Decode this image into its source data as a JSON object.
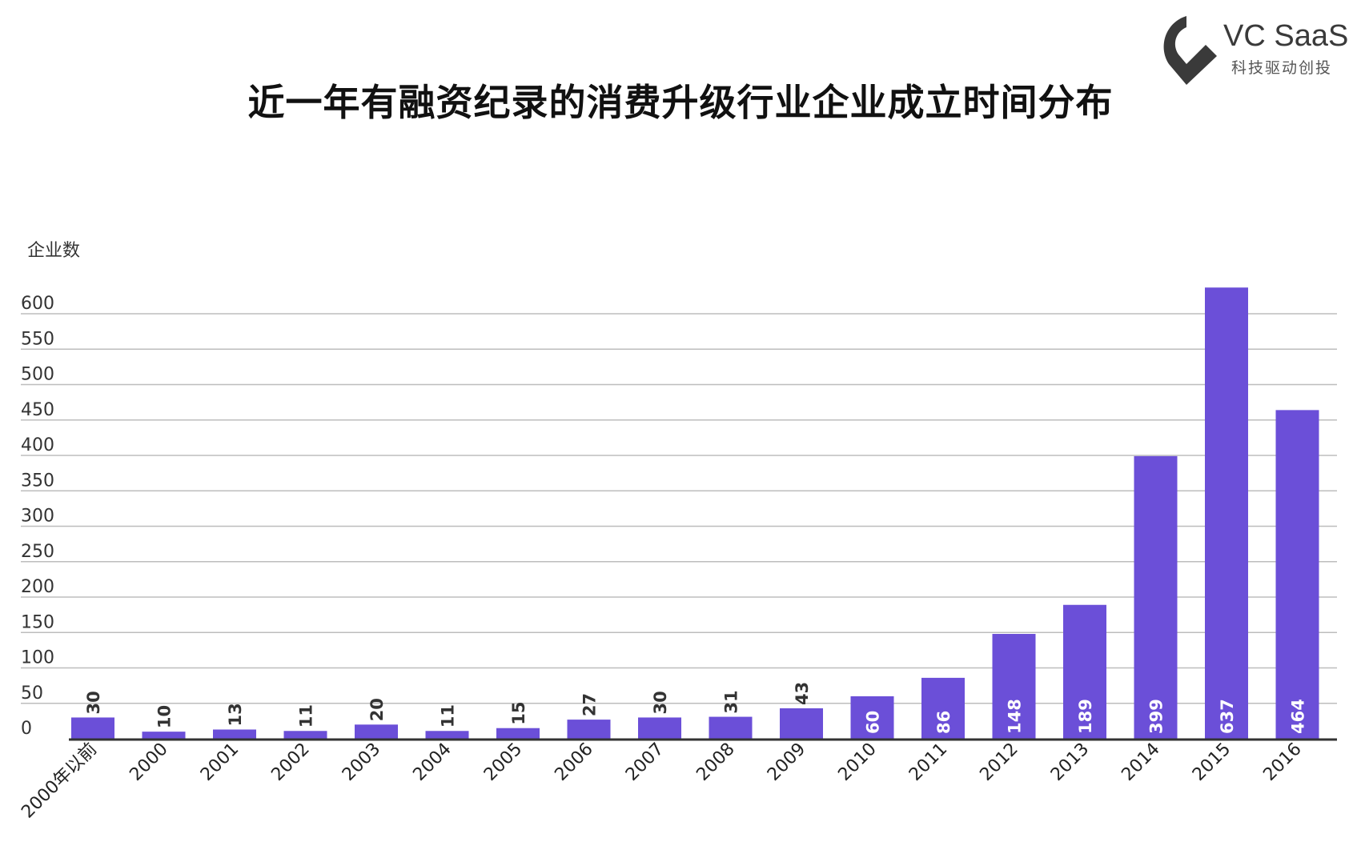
{
  "logo": {
    "name": "VC SaaS",
    "tagline": "科技驱动创投",
    "accent": "#3a3a3a"
  },
  "chart_data": {
    "type": "bar",
    "title": "近一年有融资纪录的消费升级行业企业成立时间分布",
    "xlabel": "",
    "ylabel": "企业数",
    "ylim": [
      0,
      600
    ],
    "yticks": [
      0,
      50,
      100,
      150,
      200,
      250,
      300,
      350,
      400,
      450,
      500,
      550,
      600
    ],
    "grid": true,
    "bar_color": "#6b4fd8",
    "categories": [
      "2000年以前",
      "2000",
      "2001",
      "2002",
      "2003",
      "2004",
      "2005",
      "2006",
      "2007",
      "2008",
      "2009",
      "2010",
      "2011",
      "2012",
      "2013",
      "2014",
      "2015",
      "2016"
    ],
    "values": [
      30,
      10,
      13,
      11,
      20,
      11,
      15,
      27,
      30,
      31,
      43,
      60,
      86,
      148,
      189,
      399,
      637,
      464
    ],
    "data_labels": [
      "30",
      "10",
      "13",
      "11",
      "20",
      "11",
      "15",
      "27",
      "30",
      "31",
      "43",
      "60",
      "86",
      "148",
      "189",
      "399",
      "637",
      "464"
    ]
  }
}
